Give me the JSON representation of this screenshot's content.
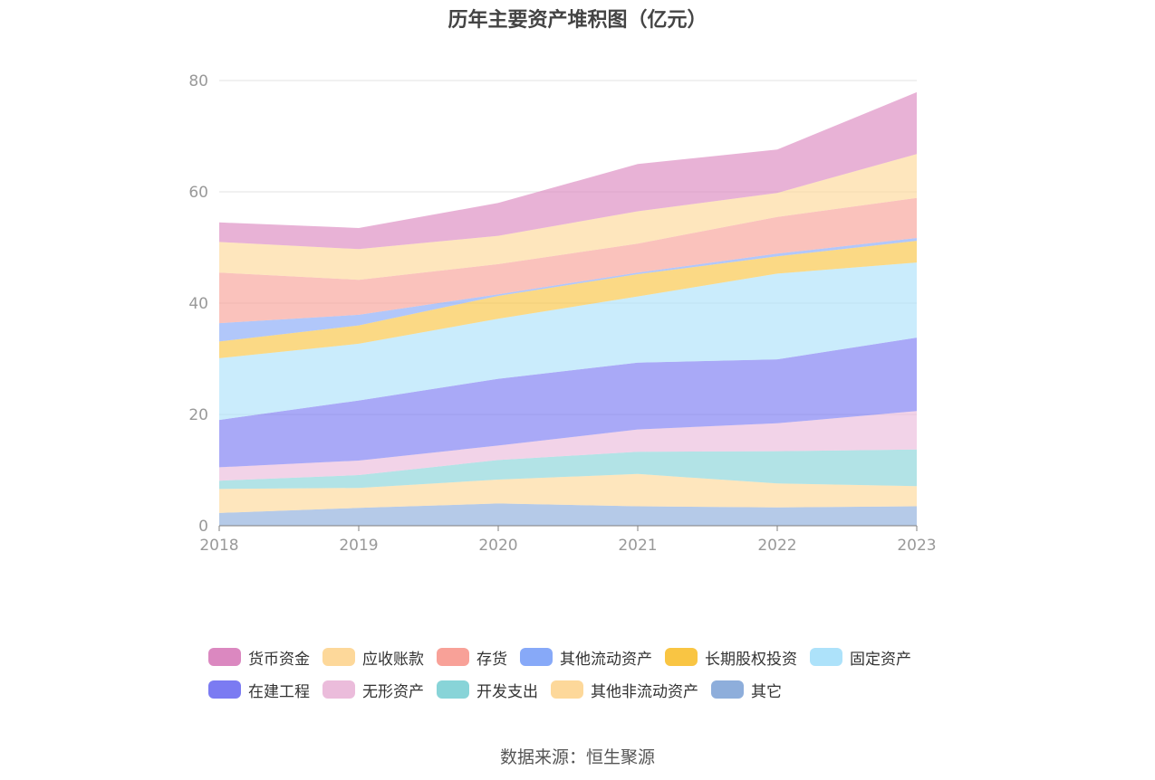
{
  "chart_data": {
    "type": "area",
    "stacked": true,
    "title": "历年主要资产堆积图（亿元）",
    "x": [
      "2018",
      "2019",
      "2020",
      "2021",
      "2022",
      "2023"
    ],
    "ylim": [
      0,
      80
    ],
    "yticks": [
      0,
      20,
      40,
      60,
      80
    ],
    "grid": true,
    "legend_position": "bottom",
    "series": [
      {
        "name": "其它",
        "color": "#8eaedb",
        "values": [
          2.3,
          3.2,
          4.0,
          3.5,
          3.3,
          3.5
        ]
      },
      {
        "name": "其他非流动资产",
        "color": "#fdd89a",
        "values": [
          4.3,
          3.6,
          4.3,
          5.8,
          4.3,
          3.6
        ]
      },
      {
        "name": "开发支出",
        "color": "#88d4d8",
        "values": [
          1.5,
          2.3,
          3.5,
          4.0,
          5.8,
          6.6
        ]
      },
      {
        "name": "无形资产",
        "color": "#ebbcdb",
        "values": [
          2.4,
          2.6,
          2.6,
          4.0,
          5.0,
          6.9
        ]
      },
      {
        "name": "在建工程",
        "color": "#7b7bf2",
        "values": [
          8.5,
          10.8,
          12.0,
          12.0,
          11.5,
          13.2
        ]
      },
      {
        "name": "固定资产",
        "color": "#ade2fa",
        "values": [
          11.1,
          10.2,
          10.8,
          11.9,
          15.4,
          13.5
        ]
      },
      {
        "name": "长期股权投资",
        "color": "#f9c543",
        "values": [
          3.0,
          3.3,
          4.1,
          4.0,
          3.1,
          3.9
        ]
      },
      {
        "name": "其他流动资产",
        "color": "#87a9f8",
        "values": [
          3.3,
          1.9,
          0.3,
          0.3,
          0.5,
          0.5
        ]
      },
      {
        "name": "存货",
        "color": "#f8a198",
        "values": [
          9.1,
          6.3,
          5.4,
          5.2,
          6.6,
          7.2
        ]
      },
      {
        "name": "应收账款",
        "color": "#fdd89a",
        "values": [
          5.5,
          5.5,
          5.1,
          5.8,
          4.3,
          7.9
        ]
      },
      {
        "name": "货币资金",
        "color": "#db88c0",
        "values": [
          3.5,
          3.8,
          5.9,
          8.5,
          7.8,
          11.1
        ]
      }
    ]
  },
  "legend_rows": [
    [
      {
        "name": "货币资金",
        "color": "#db88c0"
      },
      {
        "name": "应收账款",
        "color": "#fdd89a"
      },
      {
        "name": "存货",
        "color": "#f8a198"
      },
      {
        "name": "其他流动资产",
        "color": "#87a9f8"
      },
      {
        "name": "长期股权投资",
        "color": "#f9c543"
      },
      {
        "name": "固定资产",
        "color": "#ade2fa"
      }
    ],
    [
      {
        "name": "在建工程",
        "color": "#7b7bf2"
      },
      {
        "name": "无形资产",
        "color": "#ebbcdb"
      },
      {
        "name": "开发支出",
        "color": "#88d4d8"
      },
      {
        "name": "其他非流动资产",
        "color": "#fdd89a"
      },
      {
        "name": "其它",
        "color": "#8eaedb"
      }
    ]
  ],
  "source": "数据来源：恒生聚源"
}
